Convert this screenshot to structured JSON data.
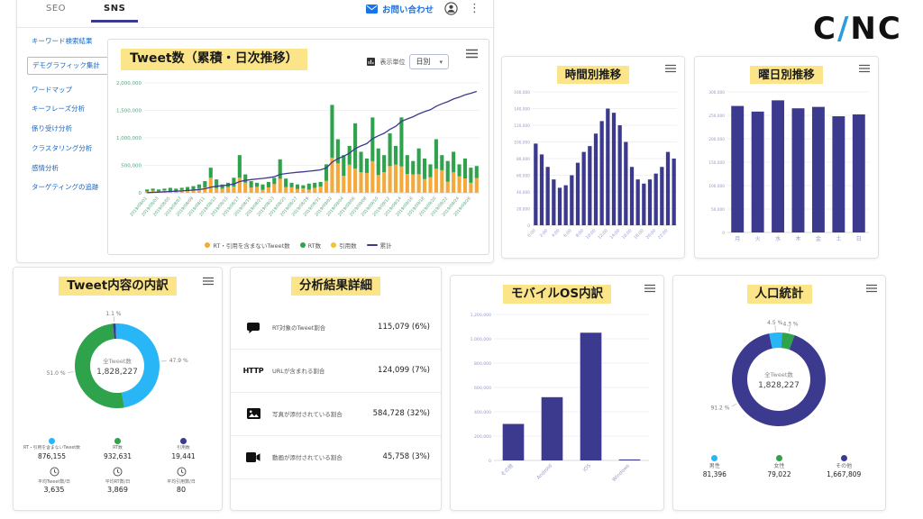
{
  "colors": {
    "navy": "#3c3a8f",
    "green": "#2fa24c",
    "orange": "#f4a93b",
    "yellow": "#f0c330",
    "lightblue": "#29b6f6",
    "highlight": "#fbe588",
    "link_blue": "#1565c0",
    "contact_blue": "#1a73e8",
    "axis_green": "#55a47c",
    "axis_blue": "#9498cc",
    "brand_slash": "#2d9cdb"
  },
  "brand": {
    "left": "C",
    "slash": "/",
    "right": "NC"
  },
  "header": {
    "tabs": [
      "SEO",
      "SNS"
    ],
    "active_tab": "SNS",
    "contact_label": "お問い合わせ"
  },
  "sidebar": {
    "items": [
      "キーワード検索結果",
      "デモグラフィック集計",
      "ワードマップ",
      "キーフレーズ分析",
      "係り受け分析",
      "クラスタリング分析",
      "感情分析",
      "ターゲティングの追跡"
    ],
    "selected": "デモグラフィック集計"
  },
  "tweet_trend": {
    "title": "Tweet数（累積・日次推移）",
    "unit_label": "表示単位",
    "unit_value": "日別",
    "legend": [
      {
        "label": "RT・引用を含まないTweet数",
        "color": "#f4a93b"
      },
      {
        "label": "RT数",
        "color": "#2fa24c"
      },
      {
        "label": "引用数",
        "color": "#f0c330"
      },
      {
        "label": "累計",
        "color": "#3c3a8f",
        "marker": "line"
      }
    ],
    "chart": {
      "type": "stacked-bar+line",
      "y_ticks": [
        0,
        500000,
        1000000,
        1500000,
        2000000
      ],
      "x_tick_labels": [
        "2019/08/01",
        "2019/08/03",
        "2019/08/05",
        "2019/08/07",
        "2019/08/09",
        "2019/08/11",
        "2019/08/13",
        "2019/08/15",
        "2019/08/17",
        "2019/08/19",
        "2019/08/21",
        "2019/08/23",
        "2019/08/25",
        "2019/08/27",
        "2019/08/29",
        "2019/08/31",
        "2019/09/02",
        "2019/09/04",
        "2019/09/06",
        "2019/09/08",
        "2019/09/10",
        "2019/09/12",
        "2019/09/14",
        "2019/09/16",
        "2019/09/18",
        "2019/09/20",
        "2019/09/22",
        "2019/09/24",
        "2019/09/26"
      ],
      "daily_totals": [
        4000,
        5000,
        4000,
        5000,
        6000,
        5000,
        6000,
        7000,
        8000,
        10000,
        14000,
        30000,
        16000,
        10000,
        12000,
        18000,
        45000,
        22000,
        14000,
        12000,
        10000,
        13000,
        18000,
        40000,
        17000,
        12000,
        10000,
        9000,
        11000,
        12000,
        13000,
        34000,
        105000,
        64000,
        45000,
        56000,
        83000,
        49000,
        41000,
        90000,
        53000,
        45000,
        71000,
        56000,
        90000,
        45000,
        38000,
        53000,
        41000,
        34000,
        64000,
        45000,
        38000,
        49000,
        34000,
        41000,
        30000,
        32000
      ],
      "rt_share_cycle": [
        0.6,
        0.45,
        0.55,
        0.4,
        0.65,
        0.5,
        0.42,
        0.58
      ],
      "quote_share": 0.01,
      "cumulative_total": 1828227
    }
  },
  "hourly": {
    "title": "時間別推移",
    "chart": {
      "type": "bar",
      "bar_color": "#3c3a8f",
      "values": [
        98000,
        85000,
        70000,
        55000,
        45000,
        48000,
        60000,
        75000,
        88000,
        95000,
        110000,
        125000,
        140000,
        135000,
        120000,
        100000,
        70000,
        55000,
        50000,
        55000,
        62000,
        70000,
        88000,
        80000
      ],
      "x_tick_labels": [
        "0:00",
        "2:00",
        "4:00",
        "6:00",
        "8:00",
        "10:00",
        "12:00",
        "14:00",
        "16:00",
        "18:00",
        "20:00",
        "22:00"
      ],
      "y_ticks": [
        0,
        20000,
        40000,
        60000,
        80000,
        100000,
        120000,
        140000,
        160000
      ]
    }
  },
  "weekday": {
    "title": "曜日別推移",
    "chart": {
      "type": "bar",
      "bar_color": "#3c3a8f",
      "categories": [
        "月",
        "火",
        "水",
        "木",
        "金",
        "土",
        "日"
      ],
      "values": [
        270000,
        258000,
        282000,
        265000,
        268000,
        248000,
        252000
      ],
      "y_ticks": [
        0,
        50000,
        100000,
        150000,
        200000,
        250000,
        300000
      ]
    }
  },
  "tweet_breakdown": {
    "title": "Tweet内容の内訳",
    "center": {
      "label": "全Tweet数",
      "value": "1,828,227"
    },
    "chart": {
      "type": "pie",
      "segments": [
        {
          "label": "引用数",
          "value_num": 19441,
          "value": "19,441",
          "pct": 1.1,
          "pct_label": "1.1 %",
          "color": "#3c3a8f"
        },
        {
          "label": "RT・引用を含まないTweet数",
          "value_num": 876155,
          "value": "876,155",
          "pct": 47.9,
          "pct_label": "47.9 %",
          "color": "#29b6f6"
        },
        {
          "label": "RT数",
          "value_num": 932631,
          "value": "932,631",
          "pct": 51.0,
          "pct_label": "51.0 %",
          "color": "#2fa24c"
        }
      ]
    },
    "legend": [
      {
        "label": "RT・引用を含まないTweet数",
        "value": "876,155",
        "color": "#29b6f6"
      },
      {
        "label": "RT数",
        "value": "932,631",
        "color": "#2fa24c"
      },
      {
        "label": "引用数",
        "value": "19,441",
        "color": "#3c3a8f"
      }
    ],
    "averages": [
      {
        "label": "平均Tweet数/日",
        "value": "3,635"
      },
      {
        "label": "平均RT数/日",
        "value": "3,869"
      },
      {
        "label": "平均引用数/日",
        "value": "80"
      }
    ]
  },
  "analysis": {
    "title": "分析結果詳細",
    "rows": [
      {
        "icon": "retweet-icon",
        "label": "RT対象のTweet割合",
        "value": "115,079 (6%)"
      },
      {
        "icon": "http-label",
        "icon_text": "HTTP",
        "label": "URLが含まれる割合",
        "value": "124,099 (7%)"
      },
      {
        "icon": "photo-icon",
        "label": "写真が添付されている割合",
        "value": "584,728 (32%)"
      },
      {
        "icon": "video-icon",
        "label": "動画が添付されている割合",
        "value": "45,758 (3%)"
      }
    ]
  },
  "mobile_os": {
    "title": "モバイルOS内訳",
    "chart": {
      "type": "bar",
      "bar_color": "#3c3a8f",
      "categories": [
        "その他",
        "Android",
        "iOS",
        "Windows"
      ],
      "values": [
        300000,
        520000,
        1050000,
        8000
      ],
      "y_ticks": [
        0,
        200000,
        400000,
        600000,
        800000,
        1000000,
        1200000
      ]
    }
  },
  "demographics": {
    "title": "人口統計",
    "center": {
      "label": "全Tweet数",
      "value": "1,828,227"
    },
    "chart": {
      "type": "pie",
      "segments": [
        {
          "label": "男性",
          "value_num": 81396,
          "value": "81,396",
          "pct": 4.5,
          "pct_label": "4.5 %",
          "color": "#29b6f6"
        },
        {
          "label": "女性",
          "value_num": 79022,
          "value": "79,022",
          "pct": 4.3,
          "pct_label": "4.3 %",
          "color": "#2fa24c"
        },
        {
          "label": "その他",
          "value_num": 1667809,
          "value": "1,667,809",
          "pct": 91.2,
          "pct_label": "91.2 %",
          "color": "#3c3a8f",
          "label_angle": 150
        }
      ]
    },
    "legend": [
      {
        "label": "男性",
        "value": "81,396",
        "color": "#29b6f6"
      },
      {
        "label": "女性",
        "value": "79,022",
        "color": "#2fa24c"
      },
      {
        "label": "その他",
        "value": "1,667,809",
        "color": "#3c3a8f"
      }
    ]
  }
}
